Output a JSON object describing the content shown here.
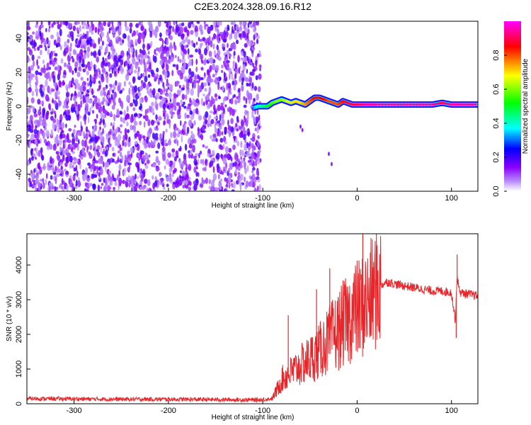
{
  "chart_data": [
    {
      "type": "heatmap",
      "title": "C2E3.2024.328.09.16.R12",
      "xlabel": "Height of straight line (km)",
      "ylabel": "Frequency (Hz)",
      "xlim": [
        -350,
        128
      ],
      "ylim": [
        -50,
        50
      ],
      "xticks": [
        "-300",
        "-200",
        "-100",
        "0",
        "100"
      ],
      "yticks": [
        "-40",
        "-20",
        "0",
        "20",
        "40"
      ],
      "grid": false,
      "colorbar": {
        "label": "Normalized spectral amplitude",
        "range": [
          0.0,
          1.0
        ],
        "ticks": [
          "0.0",
          "0.2",
          "0.4",
          "0.6",
          "0.8"
        ],
        "colormap": [
          "#ffffff",
          "#8a00ff",
          "#0000ff",
          "#00ffff",
          "#00ff00",
          "#ffff00",
          "#ff0000",
          "#ff00ff"
        ]
      },
      "noise_region_x": [
        -350,
        -107
      ],
      "signal_track": {
        "x": [
          -110,
          -105,
          -100,
          -95,
          -90,
          -85,
          -80,
          -75,
          -70,
          -65,
          -60,
          -55,
          -50,
          -45,
          -40,
          -35,
          -30,
          -25,
          -20,
          -15,
          -10,
          -5,
          0,
          10,
          20,
          40,
          60,
          80,
          90,
          100,
          110,
          128
        ],
        "freq_hz": [
          -1,
          0,
          0,
          0,
          2,
          3,
          4,
          3,
          2,
          3,
          2,
          1,
          3,
          5,
          5,
          4,
          3,
          2,
          1,
          3,
          2,
          1,
          1,
          1,
          1,
          1,
          1,
          1,
          2,
          1,
          1,
          1
        ],
        "amplitude": [
          0.3,
          0.4,
          0.45,
          0.5,
          0.55,
          0.6,
          0.6,
          0.65,
          0.7,
          0.7,
          0.7,
          0.75,
          0.8,
          0.85,
          0.85,
          0.85,
          0.8,
          0.8,
          0.8,
          0.85,
          0.9,
          0.9,
          0.9,
          0.95,
          0.95,
          0.95,
          0.95,
          0.95,
          0.9,
          0.95,
          0.95,
          0.95
        ]
      }
    },
    {
      "type": "line",
      "xlabel": "Height of straight line (km)",
      "ylabel": "SNR (10 * v/v)",
      "xlim": [
        -350,
        128
      ],
      "ylim": [
        0,
        4900
      ],
      "xticks": [
        "-300",
        "-200",
        "-100",
        "0",
        "100"
      ],
      "yticks": [
        "0",
        "1000",
        "2000",
        "3000",
        "4000"
      ],
      "grid": false,
      "color": "#e8262a",
      "series": [
        {
          "x": [
            -350,
            -300,
            -250,
            -200,
            -150,
            -110,
            -100,
            -90,
            -85,
            -80,
            -75,
            -70,
            -65,
            -60,
            -55,
            -50,
            -45,
            -40,
            -35,
            -30,
            -25,
            -20,
            -15,
            -10,
            -5,
            0,
            5,
            10,
            15,
            20,
            25,
            30,
            35,
            40,
            50,
            60,
            70,
            80,
            90,
            100,
            104,
            106,
            108,
            110,
            120,
            128
          ],
          "y": [
            150,
            140,
            130,
            130,
            120,
            110,
            120,
            150,
            400,
            700,
            800,
            900,
            1000,
            1100,
            1200,
            1300,
            1400,
            1500,
            1700,
            1800,
            2000,
            2100,
            2300,
            2400,
            2600,
            2700,
            2800,
            2900,
            3100,
            3300,
            3400,
            3500,
            3500,
            3450,
            3400,
            3350,
            3300,
            3250,
            3250,
            3200,
            2400,
            3700,
            3300,
            3200,
            3150,
            3100
          ]
        }
      ],
      "spikes": [
        {
          "x": -73,
          "y": 2550
        },
        {
          "x": -29,
          "y": 3900
        },
        {
          "x": -43,
          "y": 3300
        },
        {
          "x": 6,
          "y": 4950
        },
        {
          "x": 106,
          "y": 4300
        },
        {
          "x": 105,
          "y": 1900
        }
      ]
    }
  ]
}
